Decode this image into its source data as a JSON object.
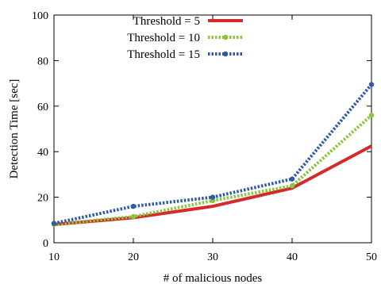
{
  "chart_data": {
    "type": "line",
    "x": [
      10,
      20,
      30,
      40,
      50
    ],
    "xlabel": "# of malicious nodes",
    "ylabel": "Detection Time [sec]",
    "xlim": [
      10,
      50
    ],
    "ylim": [
      0,
      100
    ],
    "xticks": [
      "10",
      "20",
      "30",
      "40",
      "50"
    ],
    "yticks": [
      "0",
      "20",
      "40",
      "60",
      "80",
      "100"
    ],
    "grid": false,
    "legend_position": "top-left",
    "series": [
      {
        "name": "Threshold =  5",
        "values": [
          8,
          11,
          16,
          24,
          42.5
        ],
        "color": "#d42a2a",
        "style": "solid",
        "marker": "none"
      },
      {
        "name": "Threshold = 10",
        "values": [
          8,
          11.5,
          18.5,
          25,
          56
        ],
        "color": "#8cc43c",
        "style": "dotted",
        "marker": "circle"
      },
      {
        "name": "Threshold = 15",
        "values": [
          8.5,
          16,
          20,
          28,
          69.5
        ],
        "color": "#2f5aa8",
        "style": "dotted",
        "marker": "circle"
      }
    ]
  }
}
